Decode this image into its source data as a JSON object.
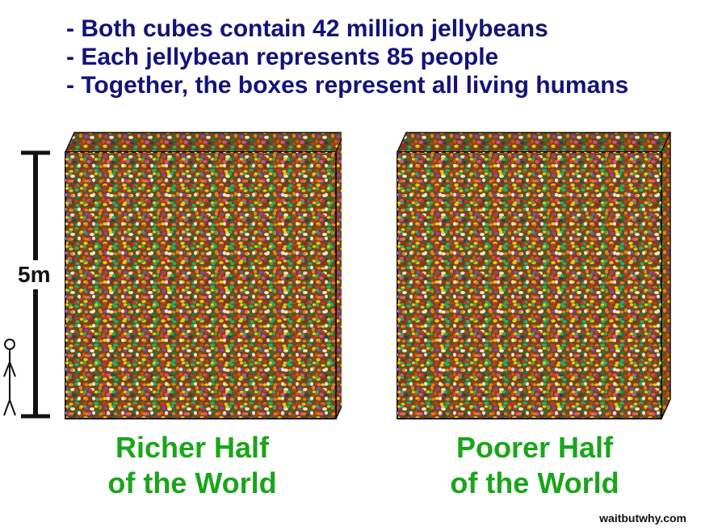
{
  "bullets": [
    "- Both cubes contain 42 million jellybeans",
    "- Each jellybean represents 85 people",
    "- Together, the boxes represent all living humans"
  ],
  "scale": {
    "label": "5m"
  },
  "cubes": [
    {
      "caption_line1": "Richer Half",
      "caption_line2": "of the World"
    },
    {
      "caption_line1": "Poorer Half",
      "caption_line2": "of the World"
    }
  ],
  "credit": "waitbutwhy.com",
  "colors": {
    "bullet_text": "#14127a",
    "caption_text": "#1aa51a",
    "jellybean_palette": [
      "#c0392b",
      "#e67e22",
      "#f1c40f",
      "#27ae60",
      "#1f7a3a",
      "#8e44ad",
      "#2c3e50",
      "#d35400",
      "#f5e6c8",
      "#9b2226",
      "#5a3a1a",
      "#e84393"
    ]
  }
}
